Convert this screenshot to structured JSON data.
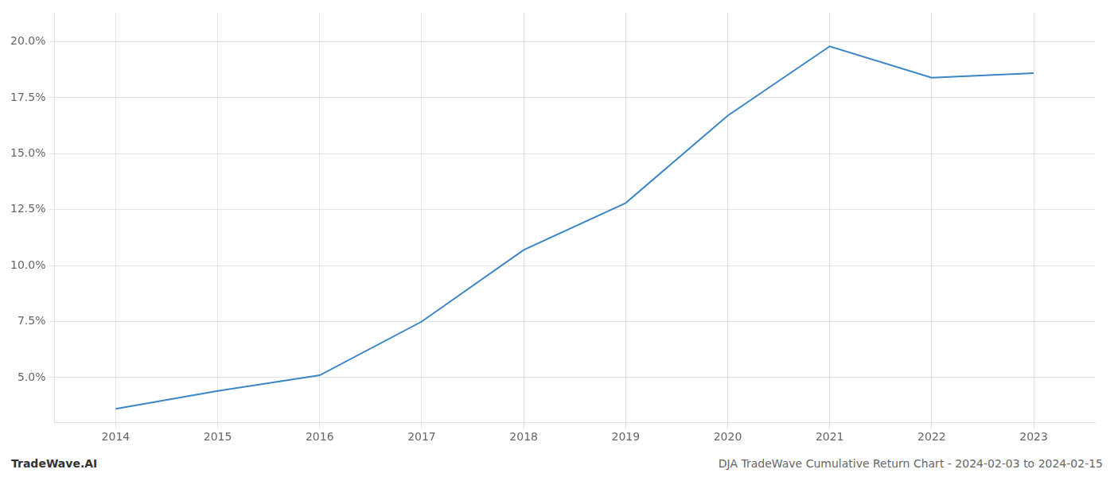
{
  "chart_data": {
    "type": "line",
    "x": [
      2014,
      2015,
      2016,
      2017,
      2018,
      2019,
      2020,
      2021,
      2022,
      2023
    ],
    "values": [
      0.036,
      0.044,
      0.051,
      0.075,
      0.107,
      0.128,
      0.167,
      0.198,
      0.184,
      0.186
    ],
    "color": "#3a86c8",
    "xlim": [
      2013.4,
      2023.6
    ],
    "xticks": [
      2014,
      2015,
      2016,
      2017,
      2018,
      2019,
      2020,
      2021,
      2022,
      2023
    ],
    "ylim": [
      0.03,
      0.213
    ],
    "yticks": [
      {
        "value": 0.05,
        "label": "5.0%"
      },
      {
        "value": 0.075,
        "label": "7.5%"
      },
      {
        "value": 0.1,
        "label": "10.0%"
      },
      {
        "value": 0.125,
        "label": "12.5%"
      },
      {
        "value": 0.15,
        "label": "15.0%"
      },
      {
        "value": 0.175,
        "label": "17.5%"
      },
      {
        "value": 0.2,
        "label": "20.0%"
      }
    ],
    "grid": true,
    "annotations": [
      "TradeWave.AI",
      "DJA TradeWave Cumulative Return Chart - 2024-02-03 to 2024-02-15"
    ]
  }
}
